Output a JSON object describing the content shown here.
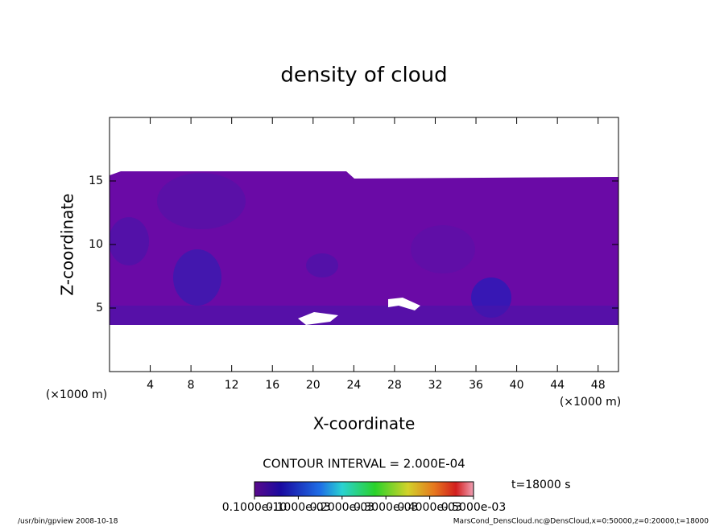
{
  "chart_data": {
    "type": "contour",
    "title": "density of cloud",
    "xlabel": "X-coordinate",
    "ylabel": "Z-coordinate",
    "xunit": "(×1000 m)",
    "yunit": "(×1000 m)",
    "xlim": [
      0,
      50
    ],
    "ylim": [
      0,
      20
    ],
    "xticks": [
      4,
      8,
      12,
      16,
      20,
      24,
      28,
      32,
      36,
      40,
      44,
      48
    ],
    "yticks": [
      5,
      10,
      15
    ],
    "contour_interval": "CONTOUR INTERVAL = 2.000E-04",
    "time_label": "t=18000 s",
    "colorbar_lim": [
      0,
      0.0005
    ],
    "colorbar_ticks": [
      {
        "value": 1e-11,
        "label": "0.1000e-10"
      },
      {
        "value": 0.0001,
        "label": "0.1000e-03"
      },
      {
        "value": 0.0002,
        "label": "0.2000e-03"
      },
      {
        "value": 0.0003,
        "label": "0.3000e-03"
      },
      {
        "value": 0.0004,
        "label": "0.4000e-03"
      },
      {
        "value": 0.0005,
        "label": "0.5000e-03"
      }
    ],
    "footer_left": "/usr/bin/gpview  2008-10-18",
    "footer_right": "MarsCond_DensCloud.nc@DensCloud,x=0:50000,z=0:20000,t=18000"
  }
}
